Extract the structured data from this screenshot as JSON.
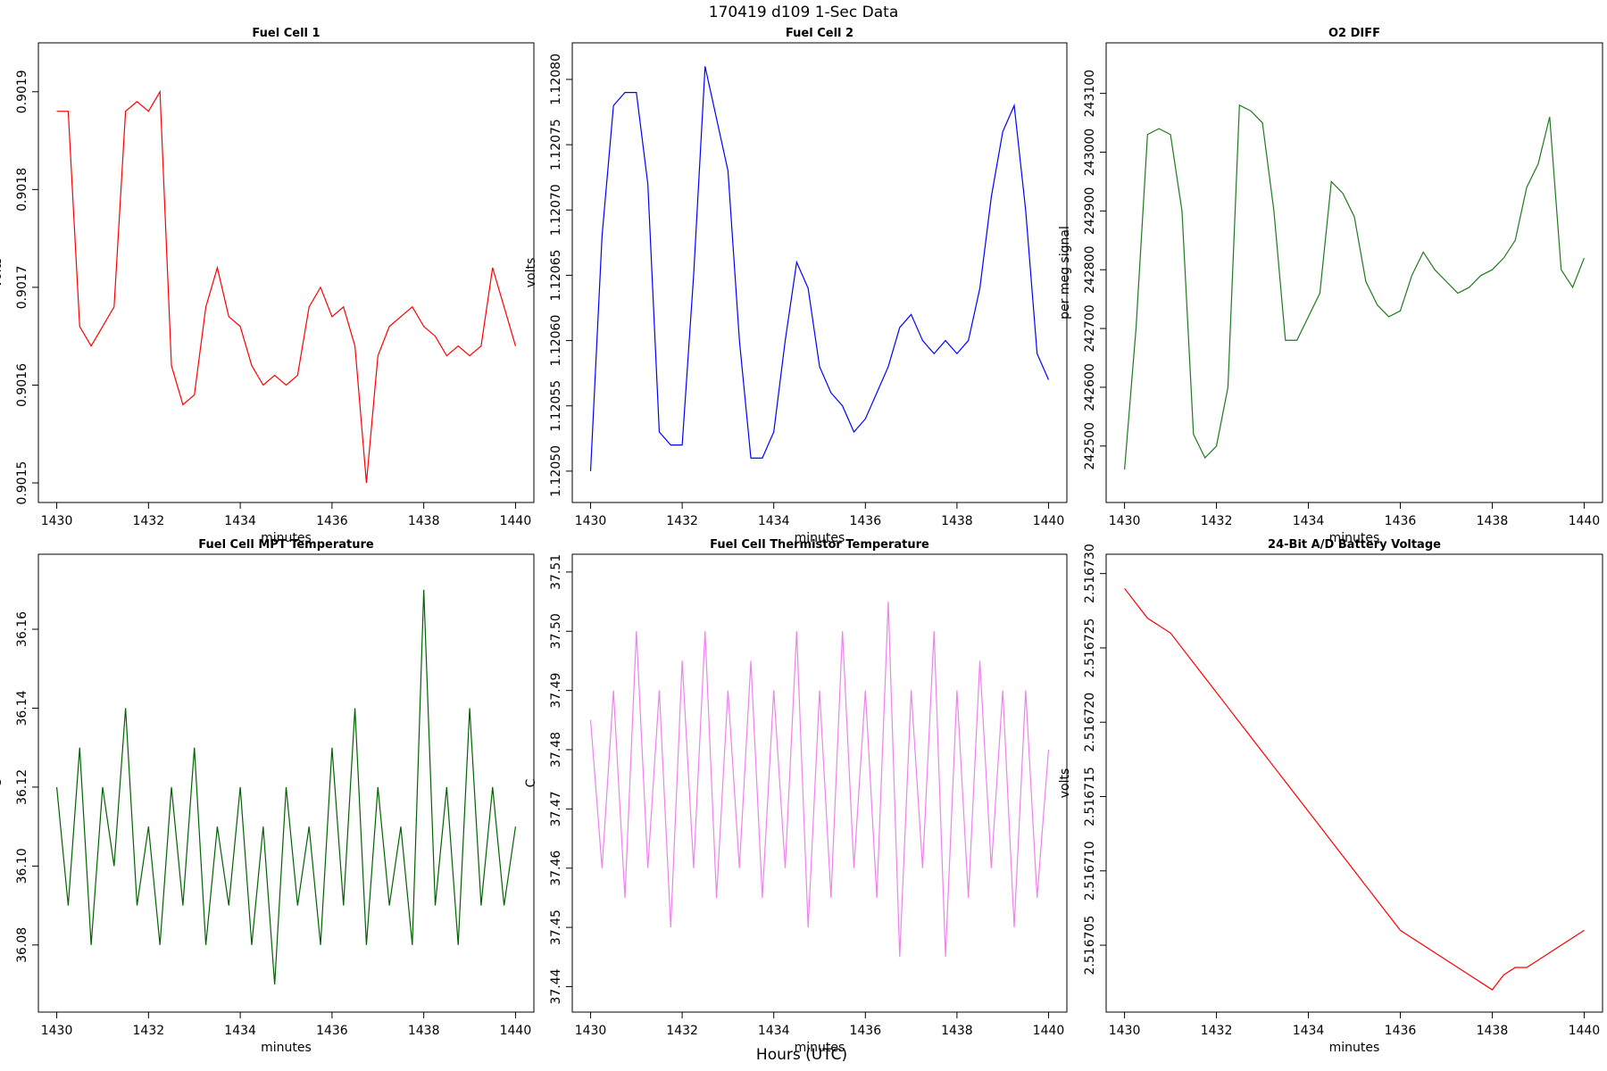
{
  "title": "170419   d109   1-Sec Data",
  "xlabel": "Hours (UTC)",
  "chart_data": [
    {
      "type": "line",
      "title": "Fuel Cell 1",
      "xlabel": "minutes",
      "ylabel": "volts",
      "color": "#ff0000",
      "x": [
        1430,
        1430.25,
        1430.5,
        1430.75,
        1431,
        1431.25,
        1431.5,
        1431.75,
        1432,
        1432.25,
        1432.5,
        1432.75,
        1433,
        1433.25,
        1433.5,
        1433.75,
        1434,
        1434.25,
        1434.5,
        1434.75,
        1435,
        1435.25,
        1435.5,
        1435.75,
        1436,
        1436.25,
        1436.5,
        1436.75,
        1437,
        1437.25,
        1437.5,
        1437.75,
        1438,
        1438.25,
        1438.5,
        1438.75,
        1439,
        1439.25,
        1439.5,
        1439.75,
        1440
      ],
      "values": [
        0.90188,
        0.90188,
        0.90166,
        0.90164,
        0.90166,
        0.90168,
        0.90188,
        0.90189,
        0.90188,
        0.9019,
        0.90162,
        0.90158,
        0.90159,
        0.90168,
        0.90172,
        0.90167,
        0.90166,
        0.90162,
        0.9016,
        0.90161,
        0.9016,
        0.90161,
        0.90168,
        0.9017,
        0.90167,
        0.90168,
        0.90164,
        0.9015,
        0.90163,
        0.90166,
        0.90167,
        0.90168,
        0.90166,
        0.90165,
        0.90163,
        0.90164,
        0.90163,
        0.90164,
        0.90172,
        0.90168,
        0.90164
      ],
      "xlim": [
        1429.6,
        1440.4
      ],
      "xticks": [
        1430,
        1432,
        1434,
        1436,
        1438,
        1440
      ],
      "ylim": [
        0.90148,
        0.90195
      ],
      "yticks": [
        0.9015,
        0.9016,
        0.9017,
        0.9018,
        0.9019
      ]
    },
    {
      "type": "line",
      "title": "Fuel Cell 2",
      "xlabel": "minutes",
      "ylabel": "volts",
      "color": "#0000ff",
      "x": [
        1430,
        1430.25,
        1430.5,
        1430.75,
        1431,
        1431.25,
        1431.5,
        1431.75,
        1432,
        1432.25,
        1432.5,
        1432.75,
        1433,
        1433.25,
        1433.5,
        1433.75,
        1434,
        1434.25,
        1434.5,
        1434.75,
        1435,
        1435.25,
        1435.5,
        1435.75,
        1436,
        1436.25,
        1436.5,
        1436.75,
        1437,
        1437.25,
        1437.5,
        1437.75,
        1438,
        1438.25,
        1438.5,
        1438.75,
        1439,
        1439.25,
        1439.5,
        1439.75,
        1440
      ],
      "values": [
        1.1205,
        1.12068,
        1.12078,
        1.12079,
        1.12079,
        1.12072,
        1.12053,
        1.12052,
        1.12052,
        1.12065,
        1.12081,
        1.12077,
        1.12073,
        1.1206,
        1.12051,
        1.12051,
        1.12053,
        1.1206,
        1.12066,
        1.12064,
        1.12058,
        1.12056,
        1.12055,
        1.12053,
        1.12054,
        1.12056,
        1.12058,
        1.12061,
        1.12062,
        1.1206,
        1.12059,
        1.1206,
        1.12059,
        1.1206,
        1.12064,
        1.12071,
        1.12076,
        1.12078,
        1.1207,
        1.12059,
        1.12057
      ],
      "xlim": [
        1429.6,
        1440.4
      ],
      "xticks": [
        1430,
        1432,
        1434,
        1436,
        1438,
        1440
      ],
      "ylim": [
        1.120476,
        1.120828
      ],
      "yticks": [
        {
          "value": 1.1205,
          "label": "1.12050"
        },
        1.12055,
        {
          "value": 1.1206,
          "label": "1.12060"
        },
        1.12065,
        {
          "value": 1.1207,
          "label": "1.12070"
        },
        1.12075,
        {
          "value": 1.1208,
          "label": "1.12080"
        }
      ]
    },
    {
      "type": "line",
      "title": "O2 DIFF",
      "xlabel": "minutes",
      "ylabel": "per meg signal",
      "color": "#1f7a1f",
      "x": [
        1430,
        1430.25,
        1430.5,
        1430.75,
        1431,
        1431.25,
        1431.5,
        1431.75,
        1432,
        1432.25,
        1432.5,
        1432.75,
        1433,
        1433.25,
        1433.5,
        1433.75,
        1434,
        1434.25,
        1434.5,
        1434.75,
        1435,
        1435.25,
        1435.5,
        1435.75,
        1436,
        1436.25,
        1436.5,
        1436.75,
        1437,
        1437.25,
        1437.5,
        1437.75,
        1438,
        1438.25,
        1438.5,
        1438.75,
        1439,
        1439.25,
        1439.5,
        1439.75,
        1440
      ],
      "values": [
        242460,
        242700,
        243030,
        243040,
        243030,
        242900,
        242520,
        242480,
        242500,
        242600,
        243080,
        243070,
        243050,
        242900,
        242680,
        242680,
        242720,
        242760,
        242950,
        242930,
        242890,
        242780,
        242740,
        242720,
        242730,
        242790,
        242830,
        242800,
        242780,
        242760,
        242770,
        242790,
        242800,
        242820,
        242850,
        242940,
        242980,
        243060,
        242800,
        242770,
        242820
      ],
      "xlim": [
        1429.6,
        1440.4
      ],
      "xticks": [
        1430,
        1432,
        1434,
        1436,
        1438,
        1440
      ],
      "ylim": [
        242404,
        243186
      ],
      "yticks": [
        242500,
        242600,
        242700,
        242800,
        242900,
        243000,
        243100
      ]
    },
    {
      "type": "line",
      "title": "Fuel Cell MPT Temperature",
      "xlabel": "minutes",
      "ylabel": "C",
      "color": "#006400",
      "x": [
        1430,
        1430.25,
        1430.5,
        1430.75,
        1431,
        1431.25,
        1431.5,
        1431.75,
        1432,
        1432.25,
        1432.5,
        1432.75,
        1433,
        1433.25,
        1433.5,
        1433.75,
        1434,
        1434.25,
        1434.5,
        1434.75,
        1435,
        1435.25,
        1435.5,
        1435.75,
        1436,
        1436.25,
        1436.5,
        1436.75,
        1437,
        1437.25,
        1437.5,
        1437.75,
        1438,
        1438.25,
        1438.5,
        1438.75,
        1439,
        1439.25,
        1439.5,
        1439.75,
        1440
      ],
      "values": [
        36.12,
        36.09,
        36.13,
        36.08,
        36.12,
        36.1,
        36.14,
        36.09,
        36.11,
        36.08,
        36.12,
        36.09,
        36.13,
        36.08,
        36.11,
        36.09,
        36.12,
        36.08,
        36.11,
        36.07,
        36.12,
        36.09,
        36.11,
        36.08,
        36.13,
        36.09,
        36.14,
        36.08,
        36.12,
        36.09,
        36.11,
        36.08,
        36.17,
        36.09,
        36.12,
        36.08,
        36.14,
        36.09,
        36.12,
        36.09,
        36.11
      ],
      "xlim": [
        1429.6,
        1440.4
      ],
      "xticks": [
        1430,
        1432,
        1434,
        1436,
        1438,
        1440
      ],
      "ylim": [
        36.063,
        36.179
      ],
      "yticks": [
        36.08,
        {
          "value": 36.1,
          "label": "36.10"
        },
        36.12,
        36.14,
        36.16
      ]
    },
    {
      "type": "line",
      "title": "Fuel Cell Thermistor Temperature",
      "xlabel": "minutes",
      "ylabel": "C",
      "color": "#ee82ee",
      "x": [
        1430,
        1430.25,
        1430.5,
        1430.75,
        1431,
        1431.25,
        1431.5,
        1431.75,
        1432,
        1432.25,
        1432.5,
        1432.75,
        1433,
        1433.25,
        1433.5,
        1433.75,
        1434,
        1434.25,
        1434.5,
        1434.75,
        1435,
        1435.25,
        1435.5,
        1435.75,
        1436,
        1436.25,
        1436.5,
        1436.75,
        1437,
        1437.25,
        1437.5,
        1437.75,
        1438,
        1438.25,
        1438.5,
        1438.75,
        1439,
        1439.25,
        1439.5,
        1439.75,
        1440
      ],
      "values": [
        37.485,
        37.46,
        37.49,
        37.455,
        37.5,
        37.46,
        37.49,
        37.45,
        37.495,
        37.46,
        37.5,
        37.455,
        37.49,
        37.46,
        37.495,
        37.455,
        37.49,
        37.46,
        37.5,
        37.45,
        37.49,
        37.455,
        37.5,
        37.46,
        37.49,
        37.455,
        37.505,
        37.445,
        37.49,
        37.46,
        37.5,
        37.445,
        37.49,
        37.455,
        37.495,
        37.46,
        37.49,
        37.45,
        37.49,
        37.455,
        37.48
      ],
      "xlim": [
        1429.6,
        1440.4
      ],
      "xticks": [
        1430,
        1432,
        1434,
        1436,
        1438,
        1440
      ],
      "ylim": [
        37.4357,
        37.513
      ],
      "yticks": [
        37.44,
        37.45,
        37.46,
        37.47,
        37.48,
        37.49,
        {
          "value": 37.5,
          "label": "37.50"
        },
        37.51
      ]
    },
    {
      "type": "line",
      "title": "24-Bit A/D Battery Voltage",
      "xlabel": "minutes",
      "ylabel": "volts",
      "color": "#ff0000",
      "x": [
        1430,
        1430.25,
        1430.5,
        1430.75,
        1431,
        1431.25,
        1431.5,
        1431.75,
        1432,
        1432.25,
        1432.5,
        1432.75,
        1433,
        1433.25,
        1433.5,
        1433.75,
        1434,
        1434.25,
        1434.5,
        1434.75,
        1435,
        1435.25,
        1435.5,
        1435.75,
        1436,
        1436.25,
        1436.5,
        1436.75,
        1437,
        1437.25,
        1437.5,
        1437.75,
        1438,
        1438.25,
        1438.5,
        1438.75,
        1439,
        1439.25,
        1439.5,
        1439.75,
        1440
      ],
      "values": [
        2.516729,
        2.516728,
        2.516727,
        2.5167265,
        2.516726,
        2.516725,
        2.516724,
        2.516723,
        2.516722,
        2.516721,
        2.51672,
        2.516719,
        2.516718,
        2.516717,
        2.516716,
        2.516715,
        2.516714,
        2.516713,
        2.516712,
        2.516711,
        2.51671,
        2.516709,
        2.516708,
        2.516707,
        2.516706,
        2.5167055,
        2.516705,
        2.5167045,
        2.516704,
        2.5167035,
        2.516703,
        2.5167025,
        2.516702,
        2.516703,
        2.5167035,
        2.5167035,
        2.516704,
        2.5167045,
        2.516705,
        2.5167055,
        2.516706
      ],
      "xlim": [
        1429.6,
        1440.4
      ],
      "xticks": [
        1430,
        1432,
        1434,
        1436,
        1438,
        1440
      ],
      "ylim": [
        2.5167005,
        2.5167313
      ],
      "yticks": [
        2.516705,
        {
          "value": 2.51671,
          "label": "2.516710"
        },
        2.516715,
        {
          "value": 2.51672,
          "label": "2.516720"
        },
        2.516725,
        {
          "value": 2.51673,
          "label": "2.516730"
        }
      ]
    }
  ]
}
